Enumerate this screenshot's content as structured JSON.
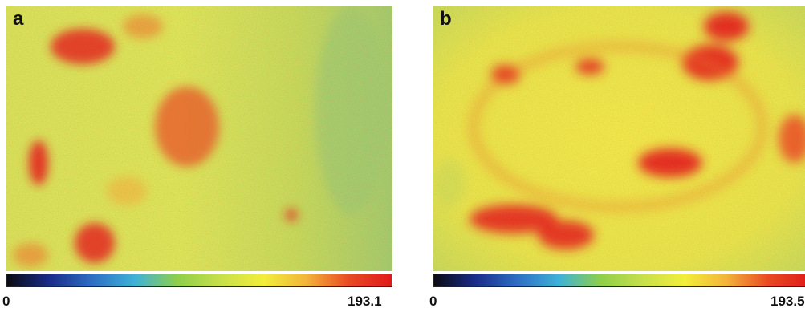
{
  "panels": [
    {
      "label": "a",
      "colorbar": {
        "min_label": "0",
        "max_label": "193.1"
      }
    },
    {
      "label": "b",
      "colorbar": {
        "min_label": "0",
        "max_label": "193.5"
      }
    }
  ],
  "colors": {
    "scale": [
      "#0b0b12",
      "#1a2d8a",
      "#2e6fc4",
      "#3fb2d6",
      "#8fcf4a",
      "#c8e04a",
      "#f2ee3a",
      "#f3b43a",
      "#e84a24",
      "#e01a1a"
    ],
    "background_green": "#a9d26a",
    "yellow": "#e8ec4c",
    "hot_red": "#e2231c"
  }
}
